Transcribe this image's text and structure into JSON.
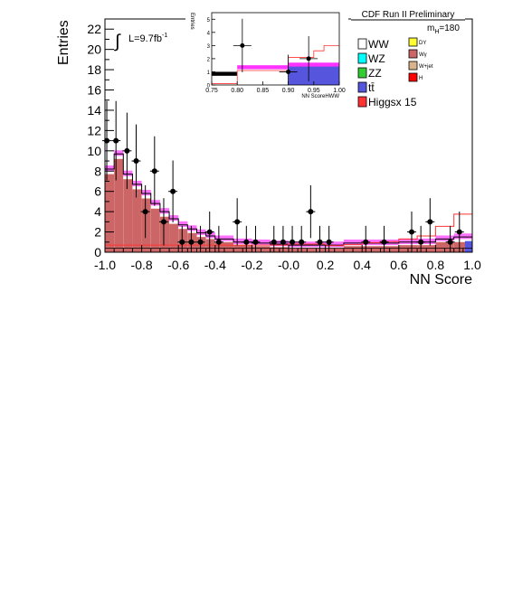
{
  "chart_data": {
    "type": "bar",
    "title": "CDF Run II Preliminary",
    "xlabel": "NN Score",
    "ylabel": "Entries",
    "xlim": [
      -1.0,
      1.0
    ],
    "ylim": [
      0,
      23
    ],
    "grid": false,
    "lumi_label": "L=9.7fb",
    "lumi_exp": "-1",
    "mass_label": "m",
    "mass_sub": "H",
    "mass_value": "=180",
    "x_ticks": [
      -1.0,
      -0.8,
      -0.6,
      -0.4,
      -0.2,
      0.0,
      0.2,
      0.4,
      0.6,
      0.8,
      1.0
    ],
    "x_tick_labels": [
      "-1.0",
      "-0.8",
      "-0.6",
      "-0.4",
      "-0.2",
      "-0.0",
      "0.2",
      "0.4",
      "0.6",
      "0.8",
      "1.0"
    ],
    "y_ticks": [
      0,
      2,
      4,
      6,
      8,
      10,
      12,
      14,
      16,
      18,
      20,
      22
    ],
    "bin_edges": [
      -1.0,
      -0.95,
      -0.9,
      -0.85,
      -0.8,
      -0.75,
      -0.7,
      -0.65,
      -0.6,
      -0.55,
      -0.5,
      -0.45,
      -0.4,
      -0.3,
      -0.2,
      -0.1,
      0.0,
      0.1,
      0.2,
      0.3,
      0.4,
      0.5,
      0.6,
      0.7,
      0.8,
      0.9,
      1.0
    ],
    "background_total": [
      8.2,
      9.7,
      7.7,
      6.7,
      5.8,
      4.8,
      4.0,
      3.3,
      2.7,
      2.3,
      1.9,
      1.6,
      1.3,
      1.0,
      0.9,
      0.8,
      0.7,
      0.7,
      0.7,
      0.9,
      0.9,
      0.9,
      1.0,
      1.0,
      1.3,
      1.5
    ],
    "wgamma": [
      7.7,
      9.2,
      7.2,
      6.2,
      5.3,
      4.3,
      3.5,
      2.8,
      2.3,
      1.9,
      1.5,
      1.3,
      1.0,
      0.7,
      0.6,
      0.5,
      0.4,
      0.4,
      0.4,
      0.6,
      0.6,
      0.6,
      0.7,
      0.7,
      1.0,
      1.0
    ],
    "higgs_x15": [
      0.1,
      0.1,
      0.1,
      0.1,
      0.1,
      0.1,
      0.1,
      0.1,
      0.1,
      0.1,
      0.1,
      0.1,
      0.1,
      0.1,
      0.1,
      0.1,
      0.2,
      0.2,
      0.3,
      0.3,
      0.5,
      0.6,
      0.8,
      1.1,
      1.9,
      3.0
    ],
    "points": [
      {
        "x": -0.99,
        "y": 11
      },
      {
        "x": -0.94,
        "y": 11
      },
      {
        "x": -0.88,
        "y": 10
      },
      {
        "x": -0.83,
        "y": 9
      },
      {
        "x": -0.78,
        "y": 4
      },
      {
        "x": -0.73,
        "y": 8
      },
      {
        "x": -0.68,
        "y": 3
      },
      {
        "x": -0.63,
        "y": 6
      },
      {
        "x": -0.58,
        "y": 1
      },
      {
        "x": -0.53,
        "y": 1
      },
      {
        "x": -0.48,
        "y": 1
      },
      {
        "x": -0.43,
        "y": 2
      },
      {
        "x": -0.38,
        "y": 1
      },
      {
        "x": -0.28,
        "y": 3
      },
      {
        "x": -0.23,
        "y": 1
      },
      {
        "x": -0.18,
        "y": 1
      },
      {
        "x": -0.08,
        "y": 1
      },
      {
        "x": -0.03,
        "y": 1
      },
      {
        "x": 0.02,
        "y": 1
      },
      {
        "x": 0.07,
        "y": 1
      },
      {
        "x": 0.12,
        "y": 4
      },
      {
        "x": 0.17,
        "y": 1
      },
      {
        "x": 0.22,
        "y": 1
      },
      {
        "x": 0.42,
        "y": 1
      },
      {
        "x": 0.52,
        "y": 1
      },
      {
        "x": 0.67,
        "y": 2
      },
      {
        "x": 0.72,
        "y": 1
      },
      {
        "x": 0.77,
        "y": 3
      },
      {
        "x": 0.88,
        "y": 1
      },
      {
        "x": 0.93,
        "y": 2
      }
    ],
    "legend": {
      "placement": "top-right",
      "entries": [
        {
          "label": "WW",
          "color": "#ffffff"
        },
        {
          "label": "DY",
          "color": "#ffff33"
        },
        {
          "label": "WZ",
          "color": "#00ffff"
        },
        {
          "label": "Wγ",
          "color": "#cc6666"
        },
        {
          "label": "ZZ",
          "color": "#33cc33"
        },
        {
          "label": "W+jet",
          "color": "#d9b38c"
        },
        {
          "label": "tt̄",
          "color": "#5555dd"
        },
        {
          "label": "H",
          "color": "#ff0000"
        },
        {
          "label": "Higgsx 15",
          "color": "#ff3333"
        }
      ]
    },
    "inset": {
      "xlabel": "NN ScoreHWW",
      "ylabel": "Entries",
      "xlim": [
        0.75,
        1.0
      ],
      "ylim": [
        0,
        5.5
      ],
      "x_ticks": [
        0.75,
        0.8,
        0.85,
        0.9,
        0.95,
        1.0
      ],
      "x_tick_labels": [
        "0.75",
        "0.80",
        "0.85",
        "0.90",
        "0.95",
        "1.00"
      ],
      "y_ticks": [
        0,
        1,
        2,
        3,
        4,
        5
      ],
      "bin_edges": [
        0.75,
        0.8,
        0.9,
        1.0
      ],
      "background_total": [
        0.8,
        1.3,
        1.5
      ],
      "higgs_x15_edges": [
        0.75,
        0.8,
        0.9,
        0.95,
        0.97,
        1.0
      ],
      "higgs_x15": [
        0.1,
        1.1,
        2.1,
        2.6,
        3.0
      ],
      "points": [
        {
          "x": 0.81,
          "y": 3
        },
        {
          "x": 0.9,
          "y": 1
        },
        {
          "x": 0.94,
          "y": 2
        }
      ]
    }
  },
  "colors": {
    "wgamma": "#cc6666",
    "ttbar": "#5555dd",
    "higgs": "#ff3333",
    "band": "#ff33ff"
  }
}
